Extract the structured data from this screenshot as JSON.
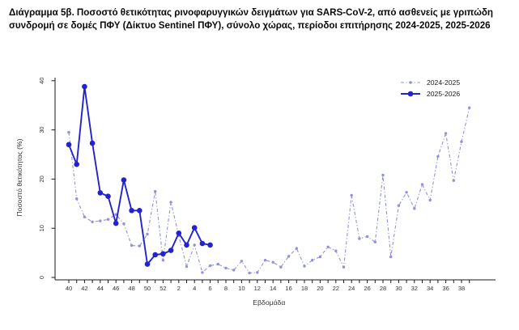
{
  "title": "Διάγραμμα 5β. Ποσοστό θετικότητας ρινοφαρυγγικών δειγμάτων για SARS-CoV-2, από ασθενείς με γριπώδη συνδρομή σε δομές ΠΦΥ (Δίκτυο Sentinel ΠΦΥ), σύνολο χώρας, περίοδοι επιτήρησης 2024-2025, 2025-2026",
  "legend": {
    "items": [
      {
        "label": "2024-2025"
      },
      {
        "label": "2025-2026"
      }
    ]
  },
  "colors": {
    "series_2024_2025": "#9090dd",
    "series_2025_2026": "#2323cd",
    "axis": "#1a1a1a",
    "tick_label": "#333333",
    "background": "#ffffff"
  },
  "chart_data": {
    "type": "line",
    "title": "",
    "xlabel": "Εβδομάδα",
    "ylabel": "Ποσοστό θετικότητας (%)",
    "ylim": [
      0,
      40
    ],
    "yticks": [
      0,
      10,
      20,
      30,
      40
    ],
    "grid": false,
    "legend_position": "top-right-inside",
    "x_categories": [
      "40",
      "41",
      "42",
      "43",
      "44",
      "45",
      "46",
      "47",
      "48",
      "49",
      "50",
      "51",
      "52",
      "1",
      "2",
      "3",
      "4",
      "5",
      "6",
      "7",
      "8",
      "9",
      "10",
      "11",
      "12",
      "13",
      "14",
      "15",
      "16",
      "17",
      "18",
      "19",
      "20",
      "21",
      "22",
      "23",
      "24",
      "25",
      "26",
      "27",
      "28",
      "29",
      "30",
      "31",
      "32",
      "33",
      "34",
      "35",
      "36",
      "37",
      "38",
      "39"
    ],
    "x_tick_labels": [
      "40",
      "42",
      "44",
      "46",
      "48",
      "50",
      "52",
      "2",
      "4",
      "6",
      "8",
      "10",
      "12",
      "14",
      "16",
      "18",
      "20",
      "22",
      "24",
      "26",
      "28",
      "30",
      "32",
      "34",
      "36",
      "38"
    ],
    "series": [
      {
        "name": "2024-2025",
        "line_style": "dash-dot",
        "marker": "small-dot",
        "color": "#9090dd",
        "values": [
          29.5,
          16,
          12.3,
          11.3,
          11.5,
          11.8,
          12.8,
          10.9,
          6.5,
          6.4,
          8.8,
          17.5,
          3.5,
          15.3,
          8.5,
          2.2,
          6.6,
          1,
          2.4,
          2.7,
          1.9,
          1.5,
          3.3,
          0.9,
          1,
          3.5,
          3.1,
          2.1,
          4.3,
          5.9,
          2.3,
          3.5,
          4.2,
          6.2,
          5.4,
          2.1,
          16.7,
          7.9,
          8.3,
          7.2,
          20.8,
          4.2,
          14.6,
          17.3,
          14,
          18.9,
          15.7,
          24.6,
          29.3,
          19.7,
          27.6,
          34.5
        ]
      },
      {
        "name": "2025-2026",
        "line_style": "solid",
        "marker": "large-dot",
        "color": "#2323cd",
        "values": [
          27,
          23,
          38.8,
          27.3,
          17.2,
          16.5,
          11,
          19.8,
          13.6,
          13.6,
          2.7,
          4.6,
          4.8,
          5.5,
          9,
          6.6,
          10.1,
          6.9,
          6.6
        ]
      }
    ]
  }
}
